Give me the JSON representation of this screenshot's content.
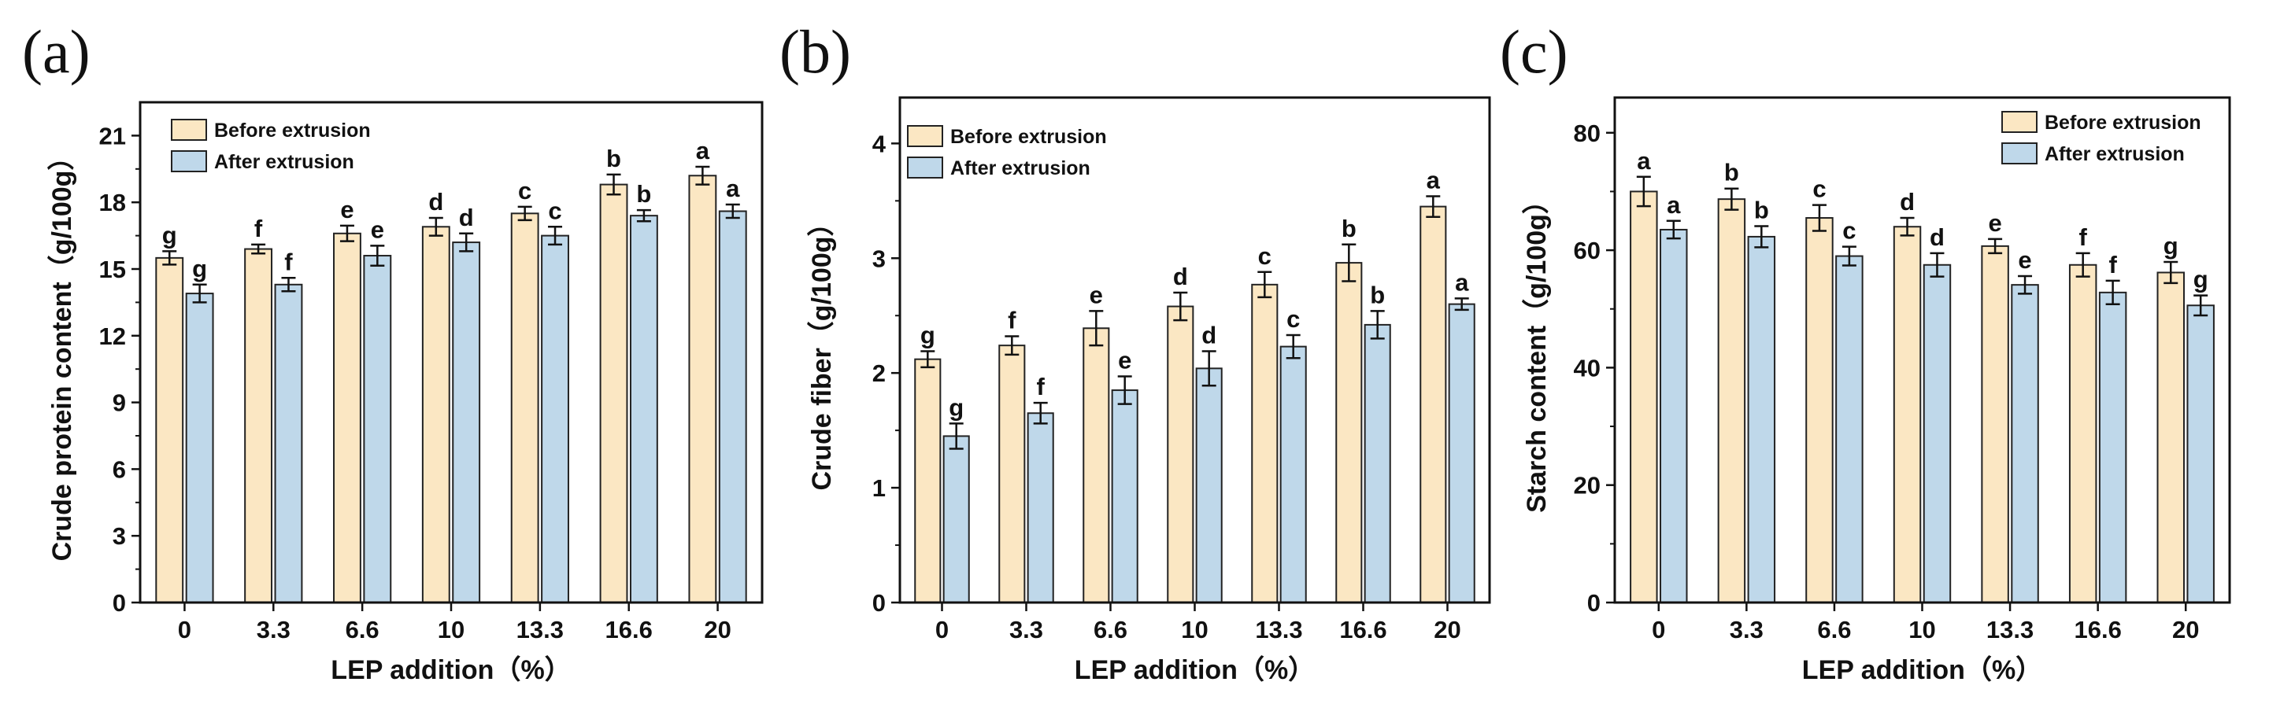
{
  "colors": {
    "before": "#FBE7C3",
    "after": "#BFD8EA",
    "stroke": "#222222"
  },
  "chart_data": [
    {
      "type": "bar",
      "panel_label": "(a)",
      "xlabel": "LEP addition（%）",
      "ylabel": "Crude protein content（g/100g）",
      "categories": [
        "0",
        "3.3",
        "6.6",
        "10",
        "13.3",
        "16.6",
        "20"
      ],
      "ylim": [
        0,
        22.5
      ],
      "yticks": [
        "0",
        "3",
        "6",
        "9",
        "12",
        "15",
        "18",
        "21"
      ],
      "legend_position": "top-left",
      "series": [
        {
          "name": "Before extrusion",
          "values": [
            15.5,
            15.9,
            16.6,
            16.9,
            17.5,
            18.8,
            19.2
          ],
          "errors": [
            0.3,
            0.2,
            0.35,
            0.4,
            0.3,
            0.45,
            0.4
          ],
          "letters": [
            "g",
            "f",
            "e",
            "d",
            "c",
            "b",
            "a"
          ]
        },
        {
          "name": "After extrusion",
          "values": [
            13.9,
            14.3,
            15.6,
            16.2,
            16.5,
            17.4,
            17.6
          ],
          "errors": [
            0.4,
            0.3,
            0.45,
            0.4,
            0.4,
            0.25,
            0.3
          ],
          "letters": [
            "g",
            "f",
            "e",
            "d",
            "c",
            "b",
            "a"
          ]
        }
      ]
    },
    {
      "type": "bar",
      "panel_label": "(b)",
      "xlabel": "LEP addition（%）",
      "ylabel": "Crude fiber（g/100g）",
      "categories": [
        "0",
        "3.3",
        "6.6",
        "10",
        "13.3",
        "16.6",
        "20"
      ],
      "ylim": [
        0,
        4.4
      ],
      "yticks": [
        "0",
        "1",
        "2",
        "3",
        "4"
      ],
      "legend_position": "top-left",
      "series": [
        {
          "name": "Before extrusion",
          "values": [
            2.12,
            2.24,
            2.39,
            2.58,
            2.77,
            2.96,
            3.45
          ],
          "errors": [
            0.07,
            0.08,
            0.15,
            0.12,
            0.11,
            0.16,
            0.09
          ],
          "letters": [
            "g",
            "f",
            "e",
            "d",
            "c",
            "b",
            "a"
          ]
        },
        {
          "name": "After extrusion",
          "values": [
            1.45,
            1.65,
            1.85,
            2.04,
            2.23,
            2.42,
            2.6
          ],
          "errors": [
            0.11,
            0.09,
            0.12,
            0.15,
            0.1,
            0.12,
            0.05
          ],
          "letters": [
            "g",
            "f",
            "e",
            "d",
            "c",
            "b",
            "a"
          ]
        }
      ]
    },
    {
      "type": "bar",
      "panel_label": "(c)",
      "xlabel": "LEP addition（%）",
      "ylabel": "Starch content（g/100g）",
      "categories": [
        "0",
        "3.3",
        "6.6",
        "10",
        "13.3",
        "16.6",
        "20"
      ],
      "ylim": [
        0,
        86
      ],
      "yticks": [
        "0",
        "20",
        "40",
        "60",
        "80"
      ],
      "legend_position": "top-right",
      "series": [
        {
          "name": "Before extrusion",
          "values": [
            70.0,
            68.7,
            65.5,
            64.0,
            60.7,
            57.5,
            56.2
          ],
          "errors": [
            2.5,
            1.8,
            2.2,
            1.5,
            1.2,
            2.0,
            1.8
          ],
          "letters": [
            "a",
            "b",
            "c",
            "d",
            "e",
            "f",
            "g"
          ]
        },
        {
          "name": "After extrusion",
          "values": [
            63.5,
            62.3,
            59.0,
            57.5,
            54.1,
            52.8,
            50.6
          ],
          "errors": [
            1.5,
            1.8,
            1.6,
            2.0,
            1.5,
            2.0,
            1.7
          ],
          "letters": [
            "a",
            "b",
            "c",
            "d",
            "e",
            "f",
            "g"
          ]
        }
      ]
    }
  ]
}
